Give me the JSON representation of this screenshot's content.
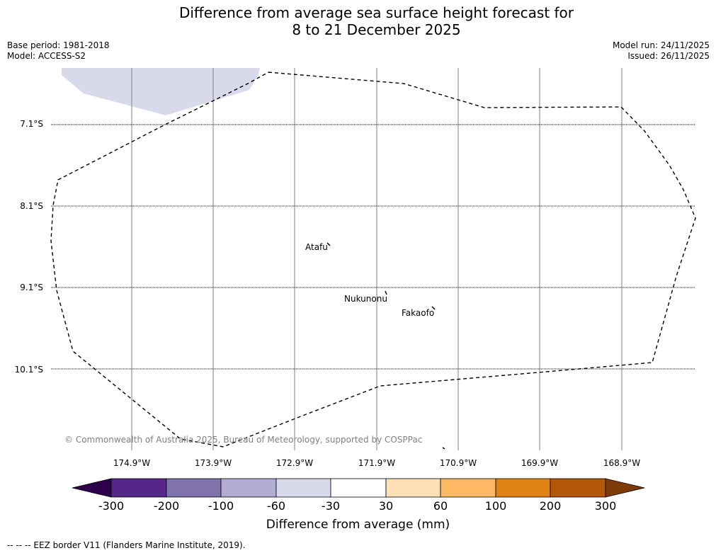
{
  "title_line1": "Difference from average sea surface height forecast for",
  "title_line2": "8 to 21 December 2025",
  "base_period": "Base period: 1981-2018",
  "model": "Model: ACCESS-S2",
  "model_run": "Model run: 24/11/2025",
  "issued": "Issued: 26/11/2025",
  "lat_labels": [
    "7.1°S",
    "8.1°S",
    "9.1°S",
    "10.1°S"
  ],
  "lon_labels": [
    "174.9°W",
    "173.9°W",
    "172.9°W",
    "171.9°W",
    "170.9°W",
    "169.9°W",
    "168.9°W"
  ],
  "places": {
    "atafu": "Atafu",
    "nukunonu": "Nukunonu",
    "fakaofo": "Fakaofo"
  },
  "copyright": "© Commonwealth of Australia 2025, Bureau of Meteorology, supported by COSPPac",
  "colorbar": {
    "ticks": [
      "-300",
      "-200",
      "-100",
      "-60",
      "-30",
      "30",
      "60",
      "100",
      "200",
      "300"
    ],
    "title": "Difference from average (mm)",
    "colors": [
      "#2d004b",
      "#542788",
      "#8073ac",
      "#b2abd2",
      "#d8daeb",
      "#ffffff",
      "#fee0b6",
      "#fdb863",
      "#e08214",
      "#b35806",
      "#7f3b08"
    ]
  },
  "footer": "-- -- -- EEZ border V11 (Flanders Marine Institute, 2019).",
  "anomaly_fill_color": "#d8daeb"
}
